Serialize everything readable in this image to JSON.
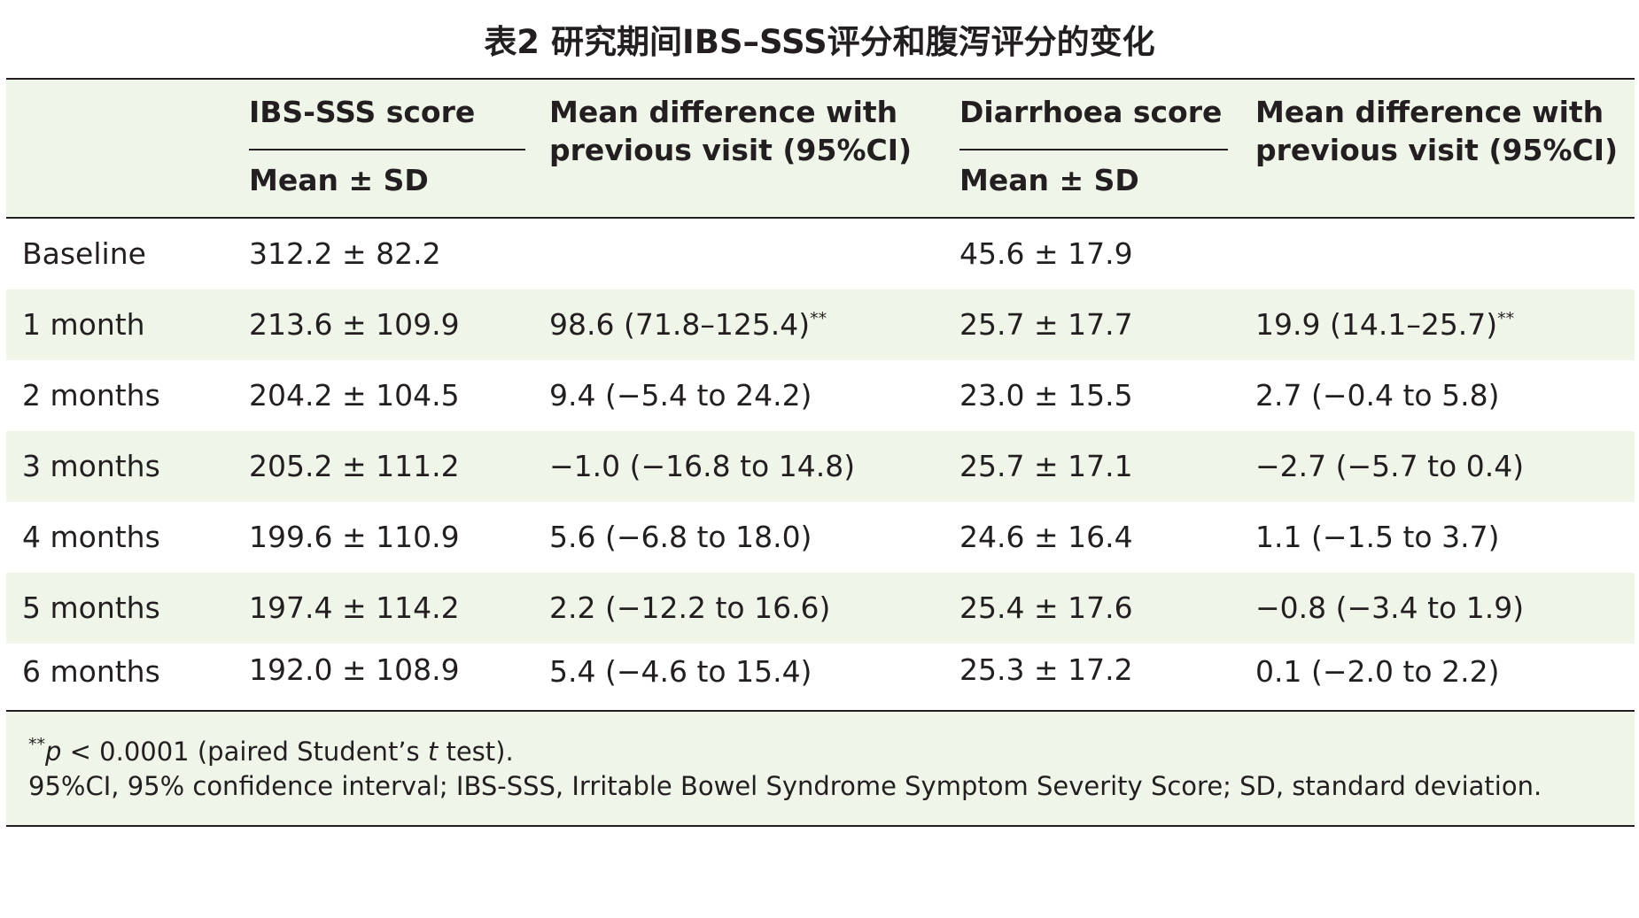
{
  "title": "表2 研究期间IBS–SSS评分和腹泻评分的变化",
  "header": {
    "col_ibs": "IBS-SSS score",
    "col_ibs_sub": "Mean ± SD",
    "col_diff1_line1": "Mean difference with",
    "col_diff1_line2": "previous visit (95%CI)",
    "col_diar": "Diarrhoea score",
    "col_diar_sub": "Mean ± SD",
    "col_diff2_line1": "Mean difference with",
    "col_diff2_line2": "previous visit (95%CI)"
  },
  "rows": [
    {
      "label": "Baseline",
      "ibs": "312.2 ± 82.2",
      "diff1": "",
      "diff1_sig": "",
      "diar": "45.6 ± 17.9",
      "diff2": "",
      "diff2_sig": ""
    },
    {
      "label": "1 month",
      "ibs": "213.6 ± 109.9",
      "diff1": "98.6 (71.8–125.4)",
      "diff1_sig": "**",
      "diar": "25.7 ± 17.7",
      "diff2": "19.9 (14.1–25.7)",
      "diff2_sig": "**"
    },
    {
      "label": "2 months",
      "ibs": "204.2 ± 104.5",
      "diff1": "9.4 (−5.4 to 24.2)",
      "diff1_sig": "",
      "diar": "23.0 ± 15.5",
      "diff2": "2.7 (−0.4 to 5.8)",
      "diff2_sig": ""
    },
    {
      "label": "3 months",
      "ibs": "205.2 ± 111.2",
      "diff1": "−1.0 (−16.8 to 14.8)",
      "diff1_sig": "",
      "diar": "25.7 ± 17.1",
      "diff2": "−2.7 (−5.7 to 0.4)",
      "diff2_sig": ""
    },
    {
      "label": "4 months",
      "ibs": "199.6 ± 110.9",
      "diff1": "5.6 (−6.8 to 18.0)",
      "diff1_sig": "",
      "diar": "24.6 ± 16.4",
      "diff2": "1.1 (−1.5 to 3.7)",
      "diff2_sig": ""
    },
    {
      "label": "5 months",
      "ibs": "197.4 ± 114.2",
      "diff1": "2.2 (−12.2 to 16.6)",
      "diff1_sig": "",
      "diar": "25.4 ± 17.6",
      "diff2": "−0.8 (−3.4 to 1.9)",
      "diff2_sig": ""
    },
    {
      "label": "6 months",
      "ibs": "192.0 ± 108.9",
      "diff1": "5.4 (−4.6 to 15.4)",
      "diff1_sig": "",
      "diar": "25.3 ± 17.2",
      "diff2": "0.1 (−2.0 to 2.2)",
      "diff2_sig": ""
    }
  ],
  "footnotes": {
    "sig_marker": "**",
    "p_symbol": "p",
    "p_text": " < 0.0001 (paired Student’s ",
    "t_symbol": "t",
    "p_tail": " test).",
    "abbreviations": "95%CI, 95% confidence interval; IBS-SSS, Irritable Bowel Syndrome Symptom Severity Score; SD, standard deviation."
  },
  "colors": {
    "shading": "#f0f5ea",
    "text": "#231f20"
  }
}
